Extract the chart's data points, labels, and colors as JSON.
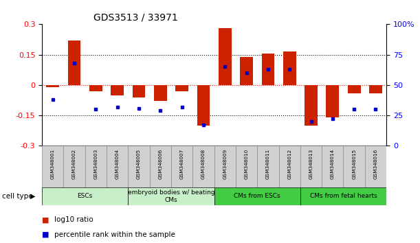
{
  "title": "GDS3513 / 33971",
  "samples": [
    "GSM348001",
    "GSM348002",
    "GSM348003",
    "GSM348004",
    "GSM348005",
    "GSM348006",
    "GSM348007",
    "GSM348008",
    "GSM348009",
    "GSM348010",
    "GSM348011",
    "GSM348012",
    "GSM348013",
    "GSM348014",
    "GSM348015",
    "GSM348016"
  ],
  "log10_ratio": [
    -0.01,
    0.22,
    -0.03,
    -0.05,
    -0.06,
    -0.08,
    -0.03,
    -0.2,
    0.28,
    0.14,
    0.155,
    0.165,
    -0.2,
    -0.16,
    -0.04,
    -0.04
  ],
  "percentile_rank": [
    38,
    68,
    30,
    32,
    31,
    29,
    32,
    17,
    65,
    60,
    63,
    63,
    20,
    22,
    30,
    30
  ],
  "cell_types": [
    {
      "label": "ESCs",
      "start": 0,
      "end": 4,
      "color": "#c8f0c8"
    },
    {
      "label": "embryoid bodies w/ beating\nCMs",
      "start": 4,
      "end": 8,
      "color": "#c8f0c8"
    },
    {
      "label": "CMs from ESCs",
      "start": 8,
      "end": 12,
      "color": "#44cc44"
    },
    {
      "label": "CMs from fetal hearts",
      "start": 12,
      "end": 16,
      "color": "#44cc44"
    }
  ],
  "ylim_left": [
    -0.3,
    0.3
  ],
  "ylim_right": [
    0,
    100
  ],
  "yticks_left": [
    -0.3,
    -0.15,
    0,
    0.15,
    0.3
  ],
  "yticks_right": [
    0,
    25,
    50,
    75,
    100
  ],
  "bar_color": "#cc2200",
  "dot_color": "#0000cc",
  "background_color": "#ffffff",
  "pct_to_ratio_scale": 0.006
}
